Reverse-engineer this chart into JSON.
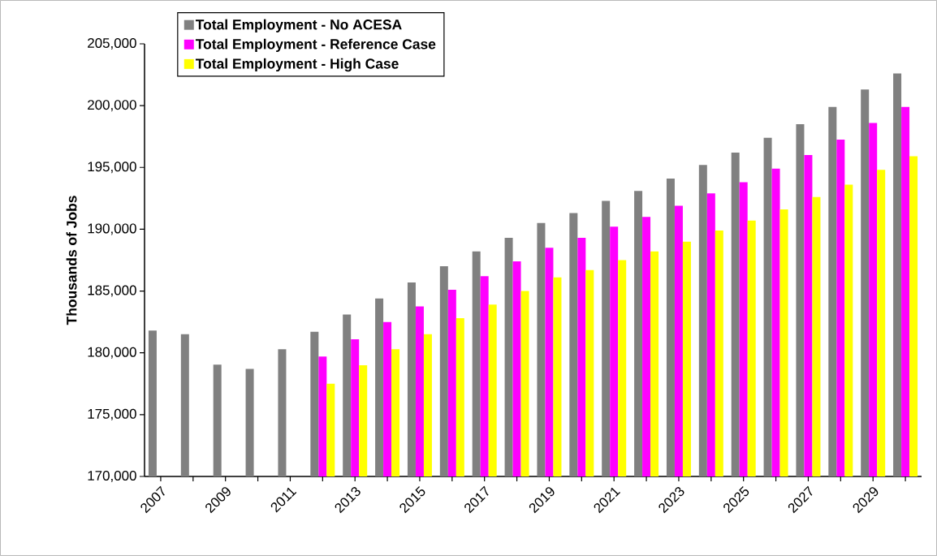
{
  "chart_data": {
    "type": "bar",
    "ylabel": "Thousands of Jobs",
    "categories": [
      "2007",
      null,
      "2009",
      null,
      "2011",
      null,
      "2013",
      null,
      "2015",
      null,
      "2017",
      null,
      "2019",
      null,
      "2021",
      null,
      "2023",
      null,
      "2025",
      null,
      "2027",
      null,
      "2029",
      null
    ],
    "series": [
      {
        "name": "Total Employment - No ACESA",
        "color": "#808080",
        "values": [
          181800,
          181500,
          179050,
          178700,
          180300,
          181700,
          183100,
          184400,
          185700,
          187000,
          188200,
          189300,
          190500,
          191300,
          192300,
          193100,
          194100,
          195200,
          196200,
          197400,
          198500,
          199900,
          201300,
          202600
        ]
      },
      {
        "name": "Total Employment - Reference Case",
        "color": "#ff00ff",
        "values": [
          null,
          null,
          null,
          null,
          null,
          179700,
          181100,
          182500,
          183750,
          185100,
          186200,
          187400,
          188500,
          189300,
          190200,
          191000,
          191900,
          192900,
          193800,
          194900,
          196000,
          197250,
          198600,
          199900
        ]
      },
      {
        "name": "Total Employment - High Case",
        "color": "#ffff00",
        "values": [
          null,
          null,
          null,
          null,
          null,
          177500,
          179000,
          180300,
          181500,
          182800,
          183900,
          185000,
          186100,
          186700,
          187500,
          188200,
          189000,
          189900,
          190700,
          191600,
          192600,
          193600,
          194800,
          195900
        ]
      }
    ],
    "ylim": [
      170000,
      205000
    ],
    "yticks": [
      {
        "value": 170000,
        "label": "170,000"
      },
      {
        "value": 175000,
        "label": "175,000"
      },
      {
        "value": 180000,
        "label": "180,000"
      },
      {
        "value": 185000,
        "label": "185,000"
      },
      {
        "value": 190000,
        "label": "190,000"
      },
      {
        "value": 195000,
        "label": "195,000"
      },
      {
        "value": 200000,
        "label": "200,000"
      },
      {
        "value": 205000,
        "label": "205,000"
      }
    ],
    "legend": "top left"
  }
}
